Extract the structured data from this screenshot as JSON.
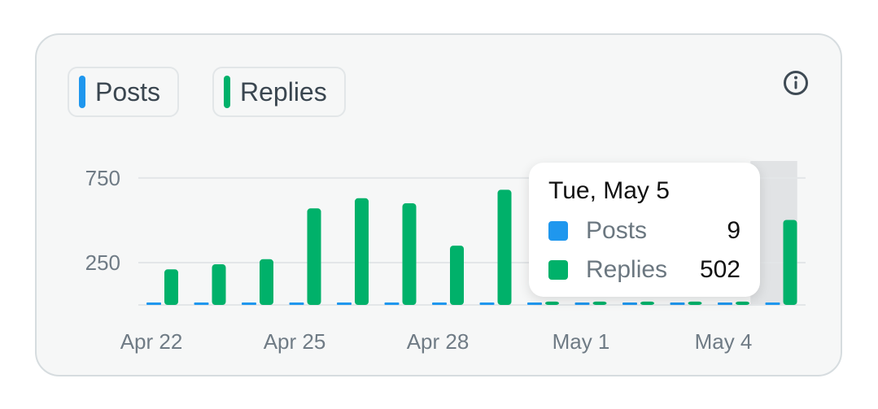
{
  "legend": {
    "posts_label": "Posts",
    "replies_label": "Replies"
  },
  "icons": {
    "info": "info-circle-icon"
  },
  "colors": {
    "posts": "#1f97ee",
    "replies": "#00b16a",
    "highlight": "#e1e3e5",
    "grid": "#e3e6e8"
  },
  "tooltip": {
    "date": "Tue, May 5",
    "posts_label": "Posts",
    "posts_value": "9",
    "replies_label": "Replies",
    "replies_value": "502"
  },
  "chart_data": {
    "type": "bar",
    "x": [
      "Apr 22",
      "Apr 23",
      "Apr 24",
      "Apr 25",
      "Apr 26",
      "Apr 27",
      "Apr 28",
      "Apr 29",
      "Apr 30",
      "May 1",
      "May 2",
      "May 3",
      "May 4",
      "May 5"
    ],
    "x_tick_labels": [
      "Apr 22",
      "Apr 25",
      "Apr 28",
      "May 1",
      "May 4"
    ],
    "y_tick_labels": [
      "750",
      "250"
    ],
    "y_ticks": [
      750,
      250
    ],
    "ylim": [
      0,
      850
    ],
    "highlighted": "May 5",
    "series": [
      {
        "name": "Posts",
        "values": [
          9,
          9,
          9,
          10,
          10,
          11,
          10,
          9,
          9,
          9,
          9,
          9,
          9,
          9
        ]
      },
      {
        "name": "Replies",
        "values": [
          210,
          240,
          270,
          570,
          630,
          600,
          350,
          680,
          20,
          20,
          20,
          20,
          20,
          502
        ]
      }
    ],
    "grid": true,
    "legend": "top-left"
  }
}
